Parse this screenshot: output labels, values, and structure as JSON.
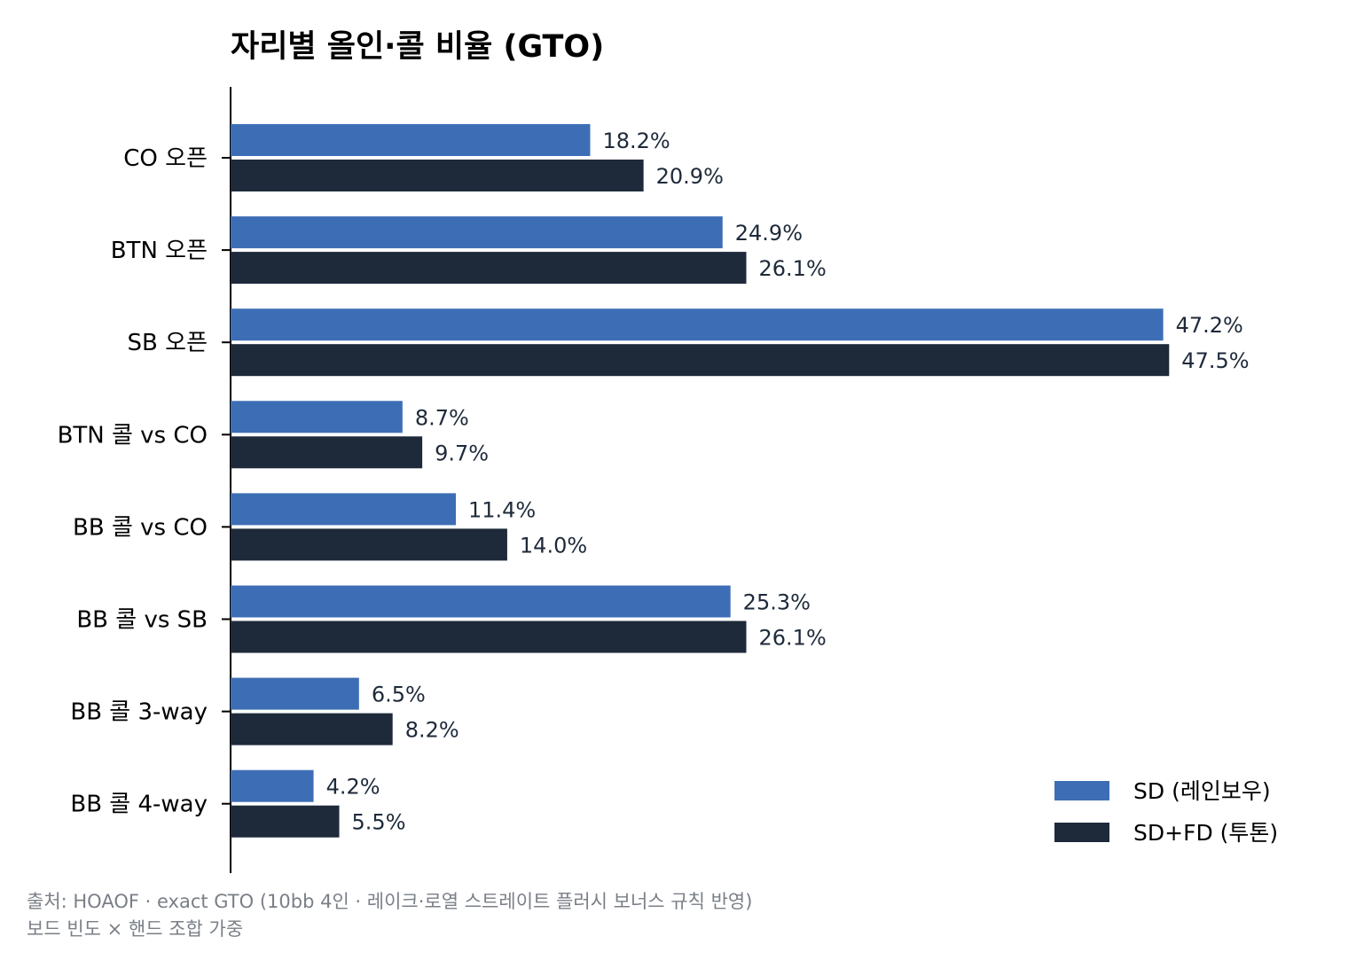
{
  "chart_data": {
    "type": "bar",
    "orientation": "horizontal",
    "title": "자리별 올인·콜 비율 (GTO)",
    "categories": [
      "CO 오픈",
      "BTN 오픈",
      "SB 오픈",
      "BTN 콜 vs CO",
      "BB 콜 vs CO",
      "BB 콜 vs SB",
      "BB 콜 3-way",
      "BB 콜 4-way"
    ],
    "series": [
      {
        "name": "SD (레인보우)",
        "color": "#3d6eb5",
        "values": [
          18.2,
          24.9,
          47.2,
          8.7,
          11.4,
          25.3,
          6.5,
          4.2
        ],
        "labels": [
          "18.2%",
          "24.9%",
          "47.2%",
          "8.7%",
          "11.4%",
          "25.3%",
          "6.5%",
          "4.2%"
        ]
      },
      {
        "name": "SD+FD (투톤)",
        "color": "#1e2a3a",
        "values": [
          20.9,
          26.1,
          47.5,
          9.7,
          14.0,
          26.1,
          8.2,
          5.5
        ],
        "labels": [
          "20.9%",
          "26.1%",
          "47.5%",
          "9.7%",
          "14.0%",
          "26.1%",
          "8.2%",
          "5.5%"
        ]
      }
    ],
    "xlim": [
      0,
      52
    ],
    "grid": false,
    "legend": "bottom-right",
    "xlabel": "",
    "ylabel": ""
  },
  "source_note": {
    "line1": "출처: HOAOF · exact GTO (10bb 4인 · 레이크·로열 스트레이트 플러시 보너스 규칙 반영)",
    "line2": "보드 빈도 × 핸드 조합 가중"
  }
}
